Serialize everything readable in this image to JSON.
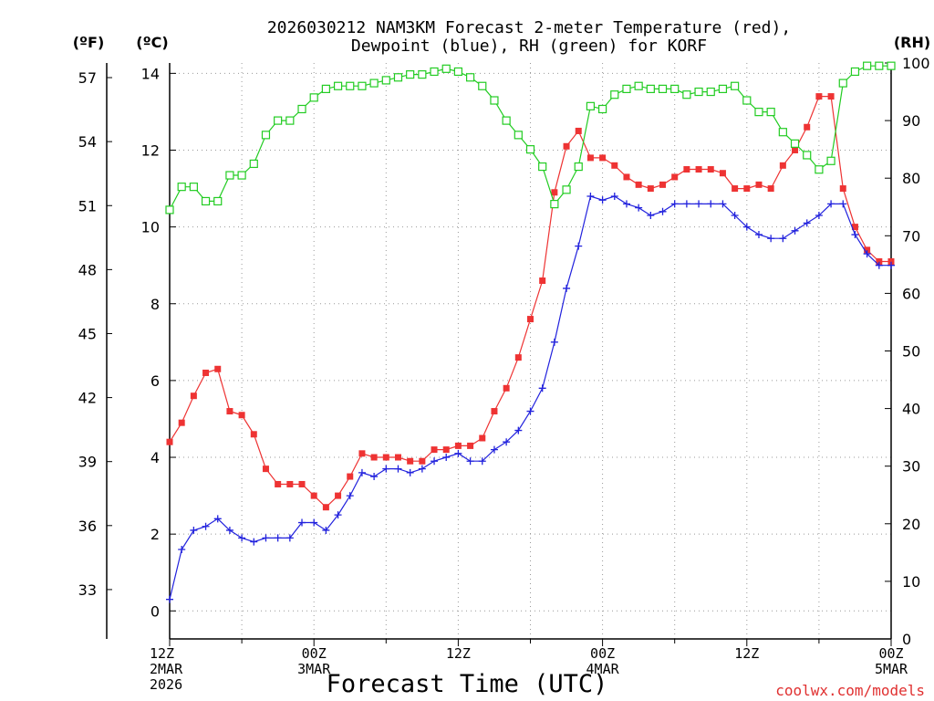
{
  "chart_data": {
    "type": "line",
    "title_line1": "2026030212 NAM3KM Forecast 2-meter Temperature (red),",
    "title_line2": "Dewpoint (blue), RH (green) for KORF",
    "xlabel": "Forecast Time (UTC)",
    "credit": "coolwx.com/models",
    "units": {
      "fahrenheit": "(ºF)",
      "celsius": "(ºC)",
      "rh": "(RH)"
    },
    "x_range": [
      0,
      60
    ],
    "x_unit": "forecast hours",
    "celsius_range": [
      -0.73,
      14.27
    ],
    "rh_range": [
      0,
      100
    ],
    "celsius_ticks": [
      0,
      2,
      4,
      6,
      8,
      10,
      12,
      14
    ],
    "fahrenheit_ticks": [
      33,
      36,
      39,
      42,
      45,
      48,
      51,
      54,
      57
    ],
    "rh_ticks": [
      0,
      10,
      20,
      30,
      40,
      50,
      60,
      70,
      80,
      90,
      100
    ],
    "x_ticks": [
      {
        "hour": 0,
        "lines": [
          "12Z",
          "2MAR",
          "2026"
        ]
      },
      {
        "hour": 12,
        "lines": [
          "00Z",
          "3MAR"
        ]
      },
      {
        "hour": 24,
        "lines": [
          "12Z"
        ]
      },
      {
        "hour": 36,
        "lines": [
          "00Z",
          "4MAR"
        ]
      },
      {
        "hour": 48,
        "lines": [
          "12Z"
        ]
      },
      {
        "hour": 60,
        "lines": [
          "00Z",
          "5MAR"
        ]
      }
    ],
    "grid": true,
    "series": [
      {
        "name": "2-meter Temperature (°C)",
        "axis": "celsius",
        "color": "#ee3333",
        "marker": "filled-square",
        "x": [
          0,
          1,
          2,
          3,
          4,
          5,
          6,
          7,
          8,
          9,
          10,
          11,
          12,
          13,
          14,
          15,
          16,
          17,
          18,
          19,
          20,
          21,
          22,
          23,
          24,
          25,
          26,
          27,
          28,
          29,
          30,
          31,
          32,
          33,
          34,
          35,
          36,
          37,
          38,
          39,
          40,
          41,
          42,
          43,
          44,
          45,
          46,
          47,
          48,
          49,
          50,
          51,
          52,
          53,
          54,
          55,
          56,
          57,
          58,
          59,
          60
        ],
        "values": [
          4.4,
          4.9,
          5.6,
          6.2,
          6.3,
          5.2,
          5.1,
          4.6,
          3.7,
          3.3,
          3.3,
          3.3,
          3.0,
          2.7,
          3.0,
          3.5,
          4.1,
          4.0,
          4.0,
          4.0,
          3.9,
          3.9,
          4.2,
          4.2,
          4.3,
          4.3,
          4.5,
          5.2,
          5.8,
          6.6,
          7.6,
          8.6,
          10.9,
          12.1,
          12.5,
          11.8,
          11.8,
          11.6,
          11.3,
          11.1,
          11.0,
          11.1,
          11.3,
          11.5,
          11.5,
          11.5,
          11.4,
          11.0,
          11.0,
          11.1,
          11.0,
          11.6,
          12.0,
          12.6,
          13.4,
          13.4,
          11.0,
          10.0,
          9.4,
          9.1,
          9.1
        ]
      },
      {
        "name": "Dewpoint (°C)",
        "axis": "celsius",
        "color": "#2222dd",
        "marker": "plus",
        "x": [
          0,
          1,
          2,
          3,
          4,
          5,
          6,
          7,
          8,
          9,
          10,
          11,
          12,
          13,
          14,
          15,
          16,
          17,
          18,
          19,
          20,
          21,
          22,
          23,
          24,
          25,
          26,
          27,
          28,
          29,
          30,
          31,
          32,
          33,
          34,
          35,
          36,
          37,
          38,
          39,
          40,
          41,
          42,
          43,
          44,
          45,
          46,
          47,
          48,
          49,
          50,
          51,
          52,
          53,
          54,
          55,
          56,
          57,
          58,
          59,
          60
        ],
        "values": [
          0.3,
          1.6,
          2.1,
          2.2,
          2.4,
          2.1,
          1.9,
          1.8,
          1.9,
          1.9,
          1.9,
          2.3,
          2.3,
          2.1,
          2.5,
          3.0,
          3.6,
          3.5,
          3.7,
          3.7,
          3.6,
          3.7,
          3.9,
          4.0,
          4.1,
          3.9,
          3.9,
          4.2,
          4.4,
          4.7,
          5.2,
          5.8,
          7.0,
          8.4,
          9.5,
          10.8,
          10.7,
          10.8,
          10.6,
          10.5,
          10.3,
          10.4,
          10.6,
          10.6,
          10.6,
          10.6,
          10.6,
          10.3,
          10.0,
          9.8,
          9.7,
          9.7,
          9.9,
          10.1,
          10.3,
          10.6,
          10.6,
          9.8,
          9.3,
          9.0,
          9.0
        ]
      },
      {
        "name": "Relative Humidity (%)",
        "axis": "rh",
        "color": "#22cc22",
        "marker": "open-square",
        "x": [
          0,
          1,
          2,
          3,
          4,
          5,
          6,
          7,
          8,
          9,
          10,
          11,
          12,
          13,
          14,
          15,
          16,
          17,
          18,
          19,
          20,
          21,
          22,
          23,
          24,
          25,
          26,
          27,
          28,
          29,
          30,
          31,
          32,
          33,
          34,
          35,
          36,
          37,
          38,
          39,
          40,
          41,
          42,
          43,
          44,
          45,
          46,
          47,
          48,
          49,
          50,
          51,
          52,
          53,
          54,
          55,
          56,
          57,
          58,
          59,
          60
        ],
        "values": [
          74.5,
          78.5,
          78.5,
          76,
          76,
          80.5,
          80.5,
          82.5,
          87.5,
          90,
          90,
          92,
          94,
          95.5,
          96,
          96,
          96,
          96.5,
          97,
          97.5,
          98,
          98,
          98.5,
          99,
          98.5,
          97.5,
          96,
          93.5,
          90,
          87.5,
          85,
          82,
          75.5,
          78,
          82,
          92.5,
          92,
          94.5,
          95.5,
          96,
          95.5,
          95.5,
          95.5,
          94.5,
          95,
          95,
          95.5,
          96,
          93.5,
          91.5,
          91.5,
          88,
          86,
          84,
          81.5,
          83,
          96.5,
          98.5,
          99.5,
          99.5,
          99.5
        ]
      }
    ]
  }
}
